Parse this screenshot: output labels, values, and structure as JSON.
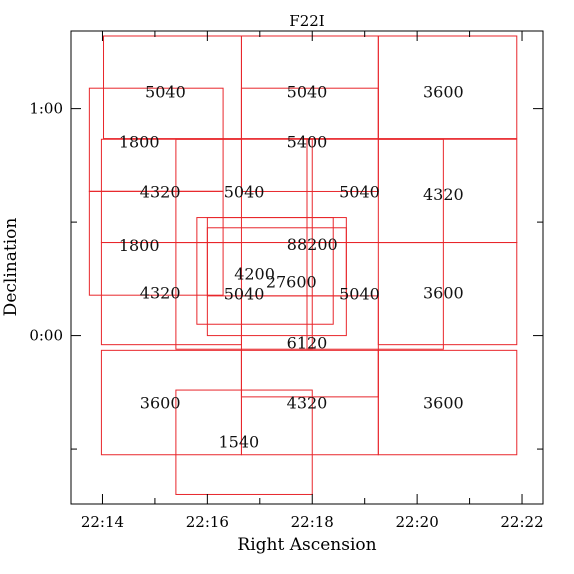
{
  "chart_data": {
    "type": "scatter",
    "title": "F22I",
    "xlabel": "Right Ascension",
    "ylabel": "Declination",
    "x_unit": "RA minutes after 22h (decreasing to the left reversed: increasing left to right)",
    "xlim": [
      13.4,
      22.4
    ],
    "ylim": [
      -0.742,
      1.342
    ],
    "x_ticks": [
      {
        "value": 14,
        "label": "22:14"
      },
      {
        "value": 16,
        "label": "22:16"
      },
      {
        "value": 18,
        "label": "22:18"
      },
      {
        "value": 20,
        "label": "22:20"
      },
      {
        "value": 22,
        "label": "22:22"
      }
    ],
    "y_ticks": [
      {
        "value": 0,
        "label": "0:00"
      },
      {
        "value": 1,
        "label": "1:00"
      }
    ],
    "x_minor_ticks": [
      15,
      17,
      19,
      21
    ],
    "y_minor_ticks": [
      -0.5,
      0.5
    ],
    "legend": "none",
    "grid": false,
    "rect_color": "#e8262b",
    "fields": [
      {
        "label": "5040",
        "ra": [
          14.02,
          16.65
        ],
        "dec": [
          0.868,
          1.32
        ],
        "label_at": [
          15.2,
          1.07
        ]
      },
      {
        "label": "5040",
        "ra": [
          16.65,
          19.26
        ],
        "dec": [
          0.868,
          1.32
        ],
        "label_at": [
          17.9,
          1.07
        ]
      },
      {
        "label": "3600",
        "ra": [
          19.26,
          21.9
        ],
        "dec": [
          0.868,
          1.32
        ],
        "label_at": [
          20.5,
          1.07
        ]
      },
      {
        "label": "1800",
        "ra": [
          13.75,
          16.3
        ],
        "dec": [
          0.635,
          1.09
        ],
        "label_at": [
          14.7,
          0.85
        ]
      },
      {
        "label": "5400",
        "ra": [
          16.65,
          19.26
        ],
        "dec": [
          0.635,
          1.09
        ],
        "label_at": [
          17.9,
          0.85
        ]
      },
      {
        "label": "4320",
        "ra": [
          13.98,
          16.65
        ],
        "dec": [
          0.41,
          0.865
        ],
        "label_at": [
          15.1,
          0.63
        ]
      },
      {
        "label": "5040",
        "ra": [
          15.4,
          18.0
        ],
        "dec": [
          0.41,
          0.865
        ],
        "label_at": [
          16.7,
          0.63
        ]
      },
      {
        "label": "5040",
        "ra": [
          17.9,
          20.5
        ],
        "dec": [
          0.41,
          0.865
        ],
        "label_at": [
          18.9,
          0.63
        ]
      },
      {
        "label": "4320",
        "ra": [
          19.26,
          21.9
        ],
        "dec": [
          0.41,
          0.865
        ],
        "label_at": [
          20.5,
          0.62
        ]
      },
      {
        "label": "1800",
        "ra": [
          13.75,
          16.3
        ],
        "dec": [
          0.178,
          0.636
        ],
        "label_at": [
          14.7,
          0.395
        ]
      },
      {
        "label": "88200",
        "ra": [
          16.0,
          18.65
        ],
        "dec": [
          0.175,
          0.52
        ],
        "label_at": [
          18.0,
          0.4
        ]
      },
      {
        "label": "4200",
        "ra": [
          15.8,
          18.4
        ],
        "dec": [
          0.05,
          0.52
        ],
        "label_at": [
          16.9,
          0.27
        ]
      },
      {
        "label": "27600",
        "ra": [
          16.0,
          18.65
        ],
        "dec": [
          0.0,
          0.475
        ],
        "label_at": [
          17.6,
          0.235
        ]
      },
      {
        "label": "4320",
        "ra": [
          13.98,
          16.65
        ],
        "dec": [
          -0.04,
          0.41
        ],
        "label_at": [
          15.1,
          0.185
        ]
      },
      {
        "label": "5040",
        "ra": [
          15.4,
          18.0
        ],
        "dec": [
          -0.06,
          0.41
        ],
        "label_at": [
          16.7,
          0.18
        ]
      },
      {
        "label": "5040",
        "ra": [
          17.9,
          20.5
        ],
        "dec": [
          -0.06,
          0.41
        ],
        "label_at": [
          18.9,
          0.18
        ]
      },
      {
        "label": "3600",
        "ra": [
          19.26,
          21.9
        ],
        "dec": [
          -0.04,
          0.41
        ],
        "label_at": [
          20.5,
          0.185
        ]
      },
      {
        "label": "6120",
        "ra": [
          16.65,
          19.26
        ],
        "dec": [
          -0.27,
          0.175
        ],
        "label_at": [
          17.9,
          -0.035
        ]
      },
      {
        "label": "3600",
        "ra": [
          13.98,
          16.65
        ],
        "dec": [
          -0.525,
          -0.065
        ],
        "label_at": [
          15.1,
          -0.3
        ]
      },
      {
        "label": "4320",
        "ra": [
          16.65,
          19.26
        ],
        "dec": [
          -0.525,
          -0.065
        ],
        "label_at": [
          17.9,
          -0.3
        ]
      },
      {
        "label": "3600",
        "ra": [
          19.26,
          21.9
        ],
        "dec": [
          -0.525,
          -0.065
        ],
        "label_at": [
          20.5,
          -0.3
        ]
      },
      {
        "label": "1540",
        "ra": [
          15.4,
          18.0
        ],
        "dec": [
          -0.7,
          -0.24
        ],
        "label_at": [
          16.6,
          -0.47
        ]
      }
    ]
  }
}
